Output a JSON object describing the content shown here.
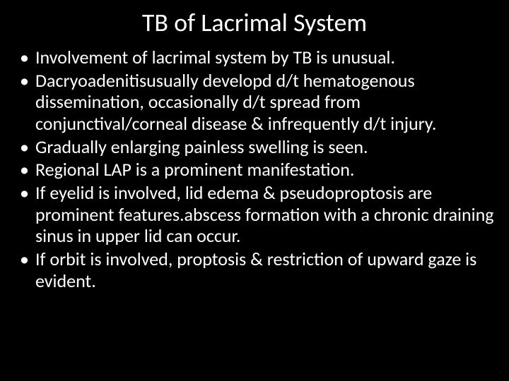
{
  "slide": {
    "title": "TB of Lacrimal System",
    "bullets": [
      "Involvement of lacrimal system by TB is unusual.",
      "Dacryoadenitisusually developd d/t hematogenous dissemination, occasionally d/t spread from conjunctival/corneal disease & infrequently d/t injury.",
      "Gradually enlarging painless swelling is seen.",
      "Regional LAP is a prominent manifestation.",
      "If eyelid is involved, lid edema & pseudoproptosis are prominent features.abscess formation with a chronic draining sinus in upper lid can occur.",
      "If orbit is involved, proptosis & restriction of upward gaze is evident."
    ]
  },
  "colors": {
    "background": "#000000",
    "text": "#ffffff"
  }
}
